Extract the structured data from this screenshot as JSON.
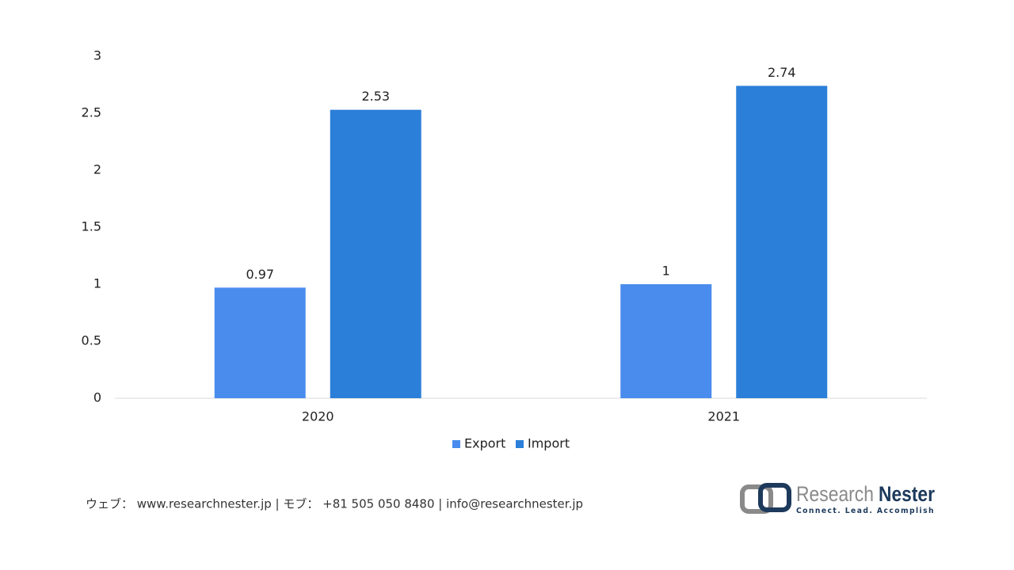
{
  "chart_data": {
    "type": "bar",
    "categories": [
      "2020",
      "2021"
    ],
    "series": [
      {
        "name": "Export",
        "color": "#4a8cee",
        "values": [
          0.97,
          1
        ]
      },
      {
        "name": "Import",
        "color": "#2b7fd8",
        "values": [
          2.53,
          2.74
        ]
      }
    ],
    "ylim": [
      0,
      3
    ],
    "yticks": [
      0,
      0.5,
      1,
      1.5,
      2,
      2.5,
      3
    ],
    "grid": false,
    "legend": "bottom"
  },
  "footer": {
    "contact": "ウェブ： www.researchnester.jp  | モブ： +81 505 050 8480 | info@researchnester.jp",
    "logo": {
      "name_left": "Research",
      "name_right": "Nester",
      "tagline": "Connect. Lead. Accomplish"
    }
  }
}
